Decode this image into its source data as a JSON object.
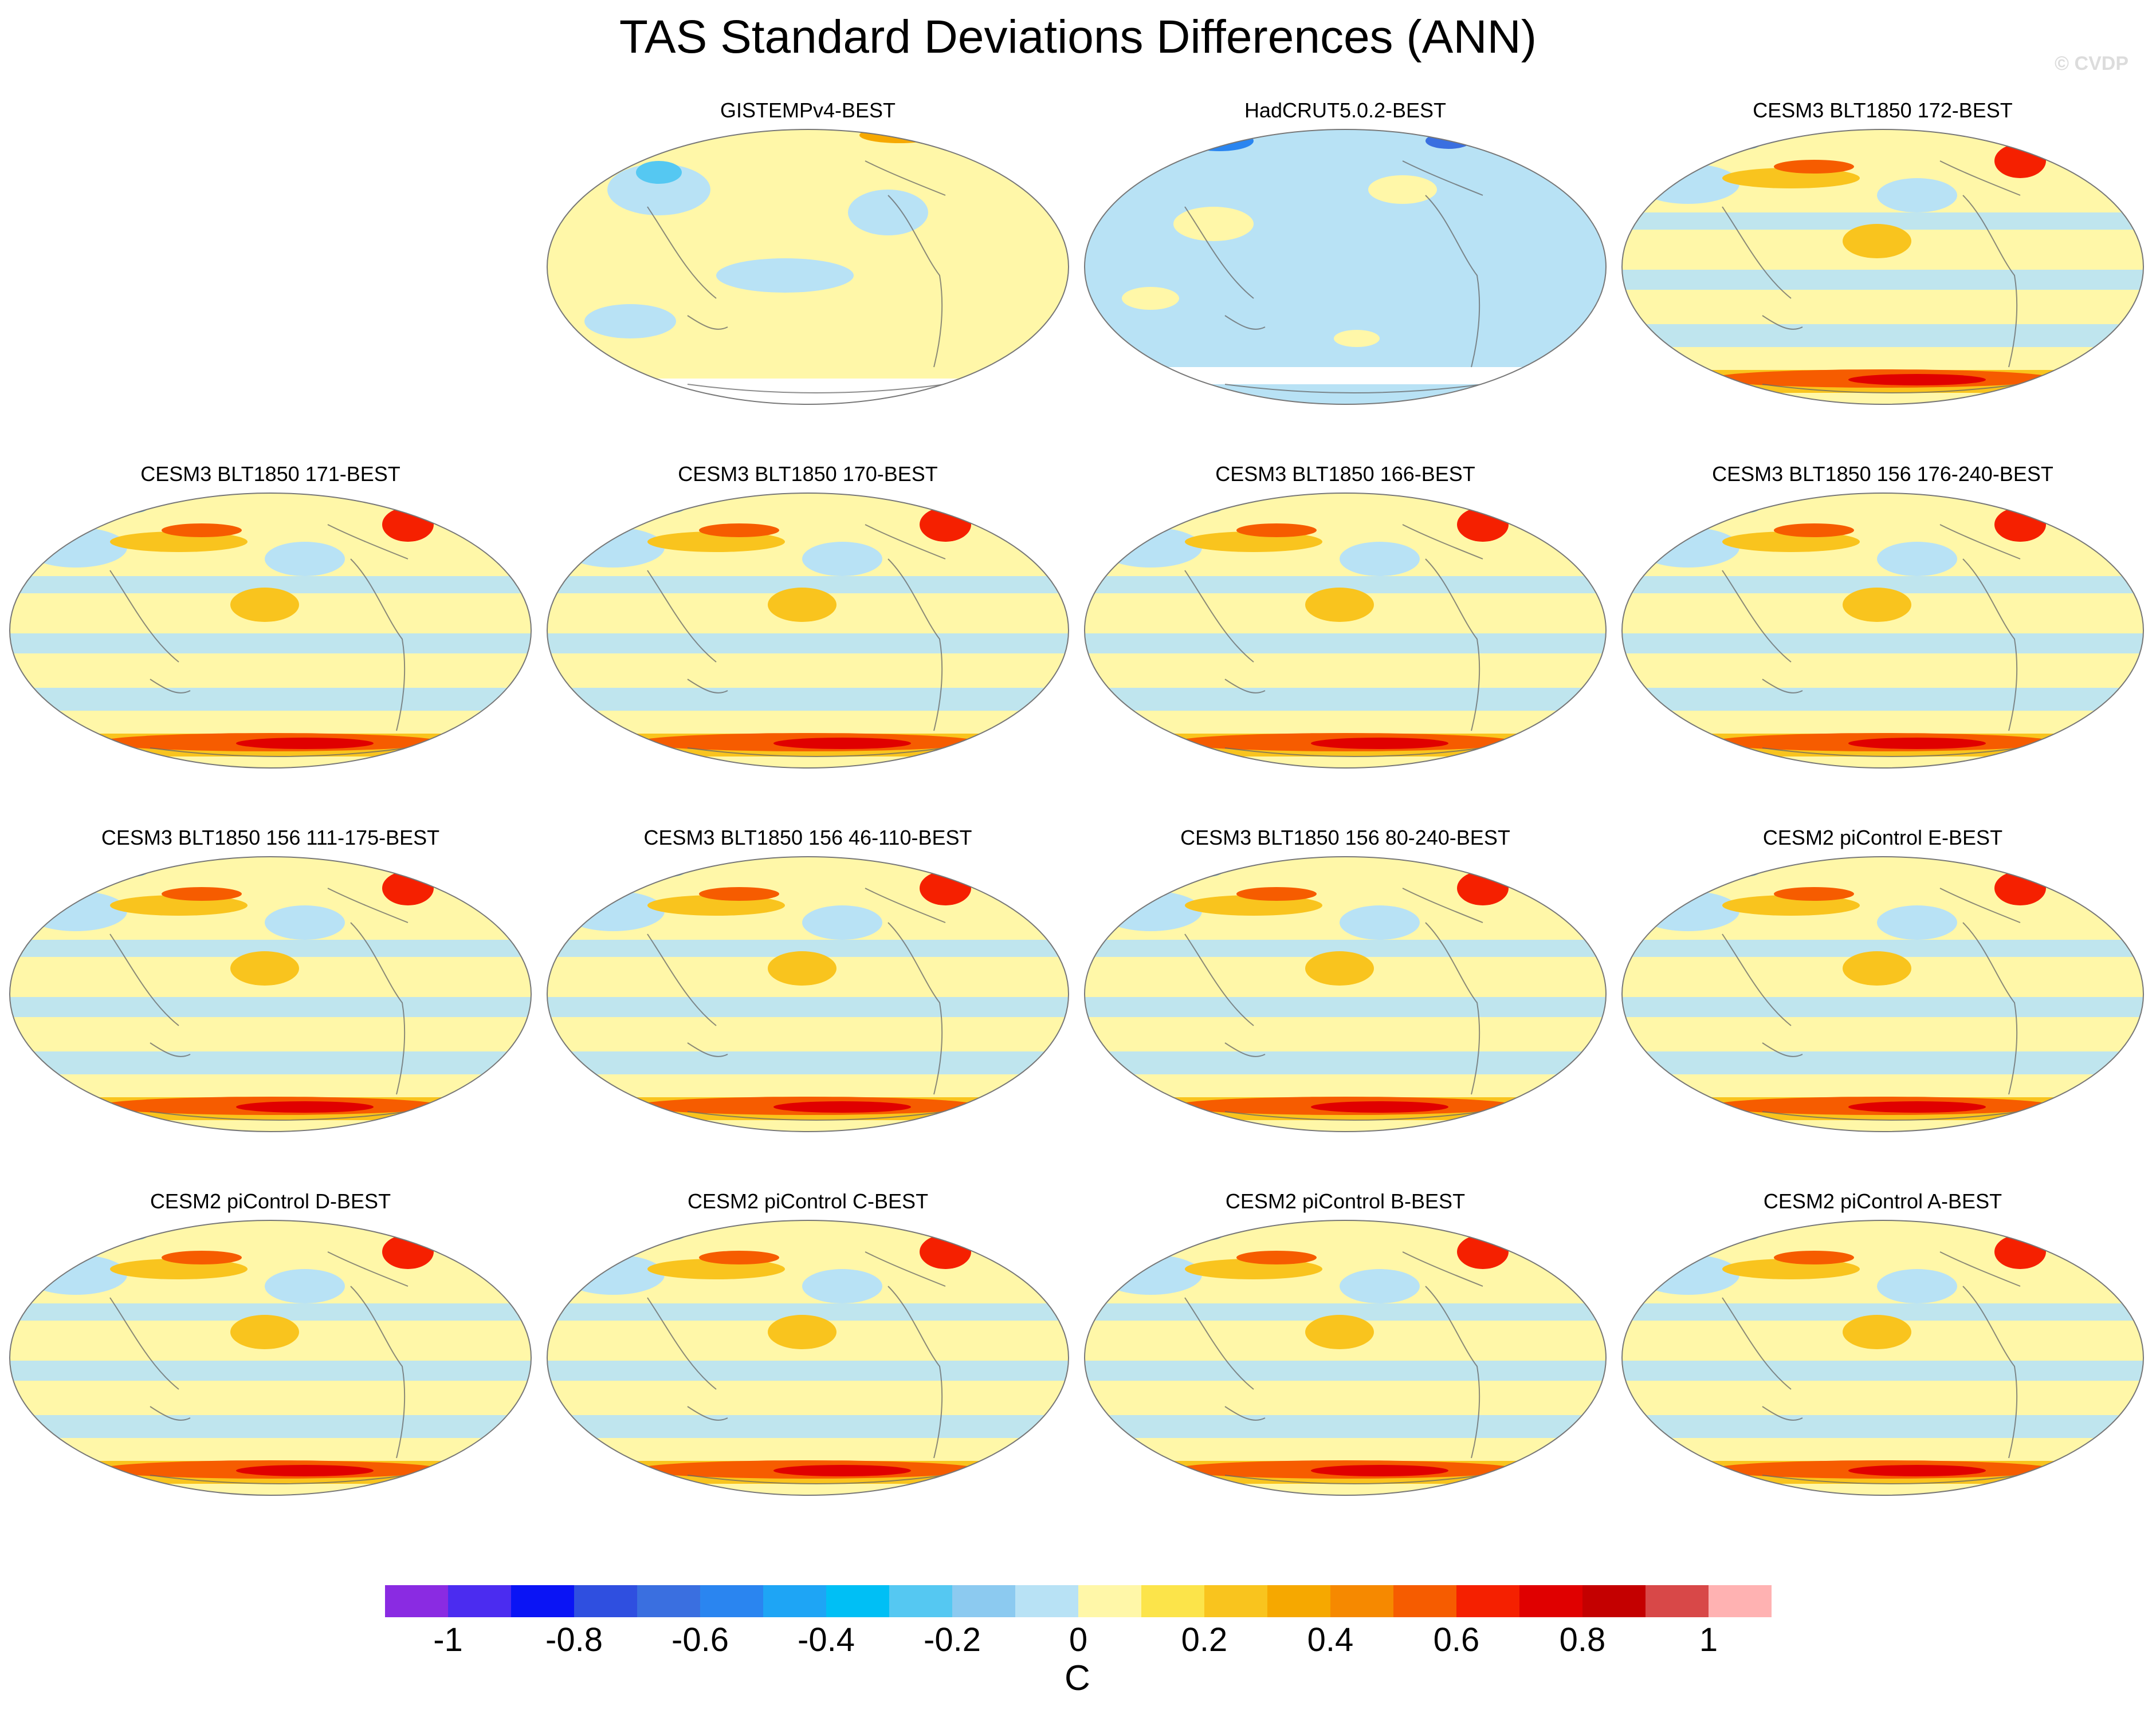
{
  "title": "TAS Standard Deviations Differences (ANN)",
  "watermark": "© CVDP",
  "panels": [
    {
      "title": "GISTEMPv4-BEST",
      "pattern": "obs-gis"
    },
    {
      "title": "HadCRUT5.0.2-BEST",
      "pattern": "obs-had"
    },
    {
      "title": "CESM3 BLT1850 172-BEST",
      "pattern": "model"
    },
    {
      "title": "CESM3 BLT1850 171-BEST",
      "pattern": "model"
    },
    {
      "title": "CESM3 BLT1850 170-BEST",
      "pattern": "model"
    },
    {
      "title": "CESM3 BLT1850 166-BEST",
      "pattern": "model"
    },
    {
      "title": "CESM3 BLT1850 156 176-240-BEST",
      "pattern": "model"
    },
    {
      "title": "CESM3 BLT1850 156 111-175-BEST",
      "pattern": "model"
    },
    {
      "title": "CESM3 BLT1850 156 46-110-BEST",
      "pattern": "model"
    },
    {
      "title": "CESM3 BLT1850 156 80-240-BEST",
      "pattern": "model"
    },
    {
      "title": "CESM2 piControl E-BEST",
      "pattern": "model"
    },
    {
      "title": "CESM2 piControl D-BEST",
      "pattern": "model"
    },
    {
      "title": "CESM2 piControl C-BEST",
      "pattern": "model"
    },
    {
      "title": "CESM2 piControl B-BEST",
      "pattern": "model"
    },
    {
      "title": "CESM2 piControl A-BEST",
      "pattern": "model"
    }
  ],
  "colorbar": {
    "unit": "C",
    "colors": [
      "#8a2be2",
      "#4b2cf0",
      "#0a14f5",
      "#2f4fe0",
      "#3a6fe0",
      "#2a85f0",
      "#1ea5f5",
      "#00bff5",
      "#55c8f2",
      "#8ccaf0",
      "#b8e2f5",
      "#fff7a8",
      "#fce44a",
      "#f9c41e",
      "#f6a800",
      "#f68900",
      "#f65c00",
      "#f52000",
      "#e00000",
      "#c40000",
      "#d84848",
      "#ffb2b2"
    ],
    "tick_labels": [
      "-1",
      "-0.8",
      "-0.6",
      "-0.4",
      "-0.2",
      "0",
      "0.2",
      "0.4",
      "0.6",
      "0.8",
      "1"
    ]
  }
}
